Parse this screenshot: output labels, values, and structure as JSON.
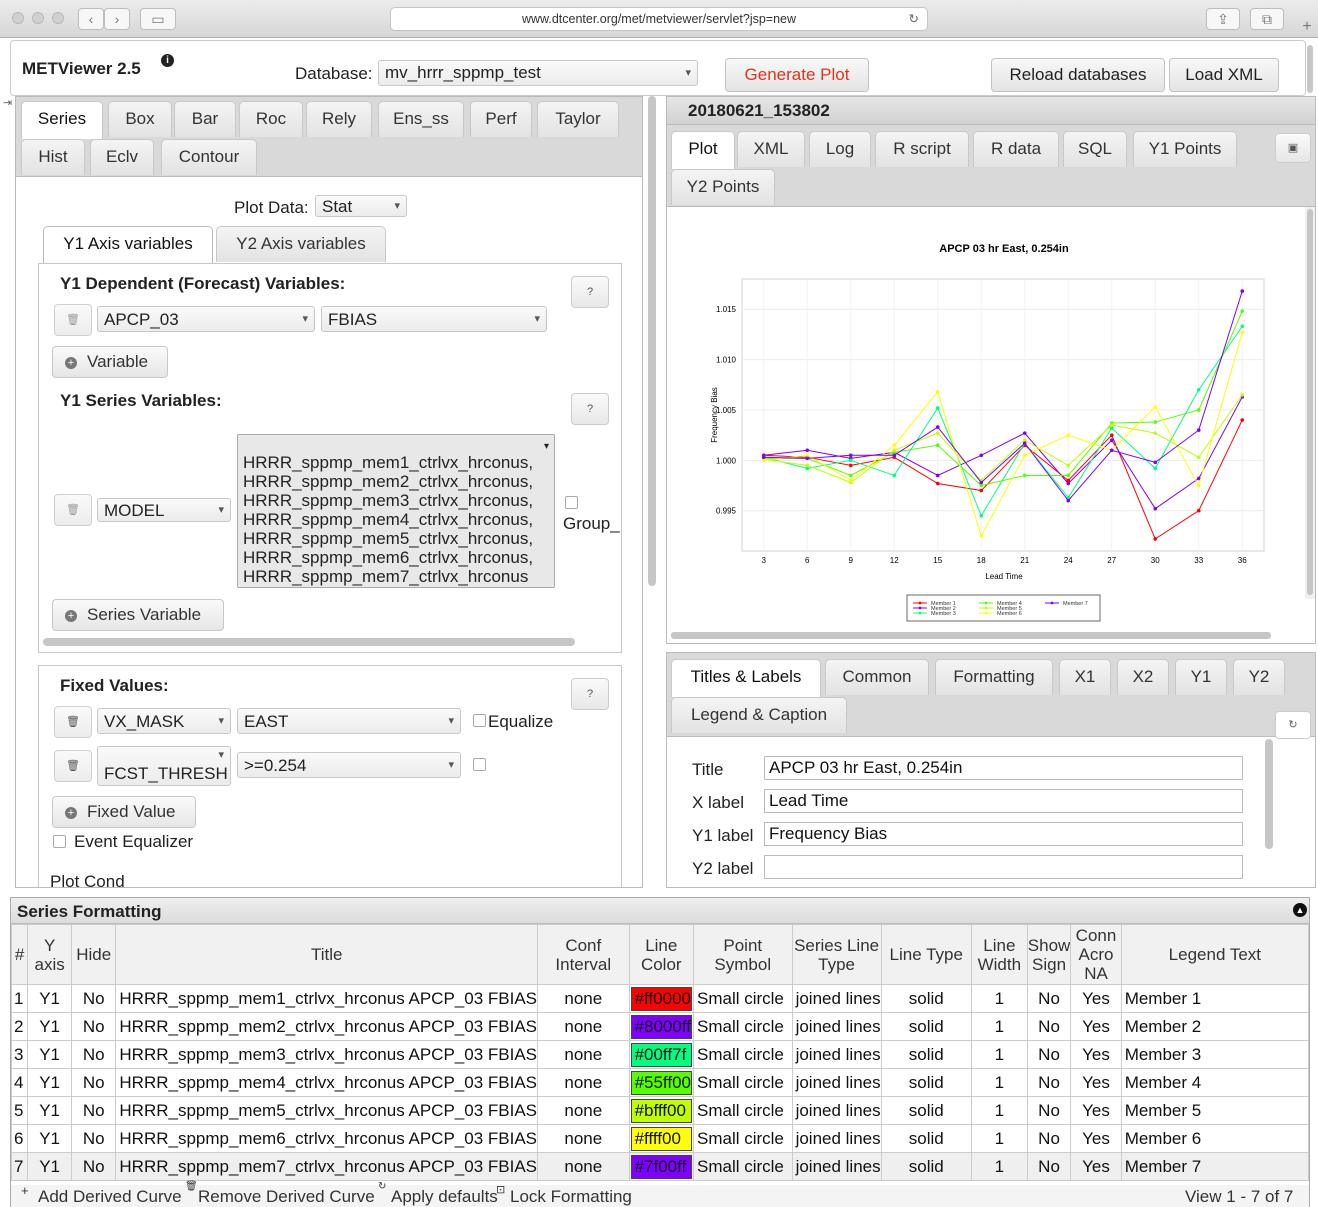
{
  "browser": {
    "url": "www.dtcenter.org/met/metviewer/servlet?jsp=new"
  },
  "header": {
    "app_title": "METViewer 2.5",
    "database_label": "Database:",
    "database_value": "mv_hrrr_sppmp_test",
    "generate_plot": "Generate Plot",
    "reload_databases": "Reload databases",
    "load_xml": "Load XML"
  },
  "left": {
    "plot_tabs": [
      "Series",
      "Box",
      "Bar",
      "Roc",
      "Rely",
      "Ens_ss",
      "Perf",
      "Taylor",
      "Hist",
      "Eclv",
      "Contour"
    ],
    "plot_data_label": "Plot Data:",
    "plot_data_value": "Stat",
    "axis_tabs": [
      "Y1 Axis variables",
      "Y2 Axis variables"
    ],
    "dep_title": "Y1 Dependent (Forecast) Variables:",
    "dep_var": "APCP_03",
    "dep_stat": "FBIAS",
    "variable_btn": "Variable",
    "series_title": "Y1 Series Variables:",
    "series_var": "MODEL",
    "series_values": [
      "HRRR_sppmp_mem1_ctrlvx_hrconus,",
      "HRRR_sppmp_mem2_ctrlvx_hrconus,",
      "HRRR_sppmp_mem3_ctrlvx_hrconus,",
      "HRRR_sppmp_mem4_ctrlvx_hrconus,",
      "HRRR_sppmp_mem5_ctrlvx_hrconus,",
      "HRRR_sppmp_mem6_ctrlvx_hrconus,",
      "HRRR_sppmp_mem7_ctrlvx_hrconus"
    ],
    "group_label": "Group_",
    "series_variable_btn": "Series Variable",
    "fixed_title": "Fixed Values:",
    "fixed1_var": "VX_MASK",
    "fixed1_val": "EAST",
    "equalize_label": "Equalize",
    "fixed2_var": "FCST_THRESH",
    "fixed2_val": ">=0.254",
    "fixed_value_btn": "Fixed Value",
    "event_equalizer": "Event Equalizer",
    "plot_cond": "Plot Cond",
    "help_glyph": "?"
  },
  "right": {
    "plot_id": "20180621_153802",
    "view_tabs": [
      "Plot",
      "XML",
      "Log",
      "R script",
      "R data",
      "SQL",
      "Y1 Points",
      "Y2 Points"
    ],
    "format_tabs": [
      "Titles & Labels",
      "Common",
      "Formatting",
      "X1",
      "X2",
      "Y1",
      "Y2",
      "Legend & Caption"
    ],
    "title_label": "Title",
    "title_value": "APCP 03 hr East, 0.254in",
    "xlabel_label": "X label",
    "xlabel_value": "Lead Time",
    "y1label_label": "Y1 label",
    "y1label_value": "Frequency Bias",
    "y2label_label": "Y2 label",
    "y2label_value": ""
  },
  "chart_data": {
    "type": "line",
    "title": "APCP 03 hr East, 0.254in",
    "xlabel": "Lead Time",
    "ylabel": "Frequency Bias",
    "x": [
      3,
      6,
      9,
      12,
      15,
      18,
      21,
      24,
      27,
      30,
      33,
      36
    ],
    "xticks": [
      3,
      6,
      9,
      12,
      15,
      18,
      21,
      24,
      27,
      30,
      33,
      36
    ],
    "yticks": [
      "0.995",
      "1.000",
      "1.005",
      "1.010",
      "1.015"
    ],
    "ylim": [
      0.991,
      1.018
    ],
    "xlim": [
      1.5,
      37.5
    ],
    "series": [
      {
        "name": "Member 1",
        "color": "#ff0000",
        "values": [
          1.0005,
          1.0003,
          0.9995,
          1.0003,
          0.9977,
          0.997,
          1.0015,
          0.998,
          1.0025,
          0.9922,
          0.995,
          1.004
        ]
      },
      {
        "name": "Member 2",
        "color": "#8000ff",
        "values": [
          1.0005,
          1.001,
          1.0002,
          1.0008,
          0.9985,
          1.0005,
          1.0027,
          0.9977,
          1.002,
          0.9952,
          0.9982,
          1.0063
        ]
      },
      {
        "name": "Member 3",
        "color": "#00ff7f",
        "values": [
          1.0003,
          0.9992,
          1.0,
          0.9985,
          1.0052,
          0.9945,
          1.0017,
          0.9963,
          1.0032,
          0.9992,
          1.007,
          1.0133
        ]
      },
      {
        "name": "Member 4",
        "color": "#55ff00",
        "values": [
          1.0002,
          1.0002,
          0.9985,
          1.0008,
          1.0015,
          0.9975,
          0.9985,
          0.9985,
          1.0037,
          1.0038,
          1.005,
          1.0148
        ]
      },
      {
        "name": "Member 5",
        "color": "#bfff00",
        "values": [
          1.0001,
          0.9995,
          0.9978,
          1.001,
          1.0027,
          0.998,
          1.002,
          0.9995,
          1.0035,
          1.0027,
          1.0003,
          1.0065
        ]
      },
      {
        "name": "Member 6",
        "color": "#ffff00",
        "values": [
          1.0,
          1.0005,
          0.998,
          1.0015,
          1.0068,
          0.9925,
          1.0005,
          1.0025,
          1.001,
          1.0053,
          0.9975,
          1.0127
        ]
      },
      {
        "name": "Member 7",
        "color": "#7f00ff",
        "values": [
          1.0003,
          1.0002,
          1.0005,
          1.0005,
          1.0033,
          0.9978,
          1.0017,
          0.996,
          1.001,
          0.9998,
          1.003,
          1.0168
        ]
      }
    ]
  },
  "series_formatting": {
    "title": "Series Formatting",
    "columns": [
      "#",
      "Y axis",
      "Hide",
      "Title",
      "Conf Interval",
      "Line Color",
      "Point Symbol",
      "Series Line Type",
      "Line Type",
      "Line Width",
      "Show Sign",
      "Conn Acro NA",
      "Legend Text"
    ],
    "rows": [
      {
        "n": "1",
        "y": "Y1",
        "hide": "No",
        "title": "HRRR_sppmp_mem1_ctrlvx_hrconus APCP_03 FBIAS",
        "ci": "none",
        "color_text": "#ff0000",
        "color": "#ff0000",
        "symbol": "Small circle",
        "slt": "joined lines",
        "lt": "solid",
        "lw": "1",
        "sign": "No",
        "conn": "Yes",
        "legend": "Member 1"
      },
      {
        "n": "2",
        "y": "Y1",
        "hide": "No",
        "title": "HRRR_sppmp_mem2_ctrlvx_hrconus APCP_03 FBIAS",
        "ci": "none",
        "color_text": "#8000ff",
        "color": "#8000ff",
        "symbol": "Small circle",
        "slt": "joined lines",
        "lt": "solid",
        "lw": "1",
        "sign": "No",
        "conn": "Yes",
        "legend": "Member 2"
      },
      {
        "n": "3",
        "y": "Y1",
        "hide": "No",
        "title": "HRRR_sppmp_mem3_ctrlvx_hrconus APCP_03 FBIAS",
        "ci": "none",
        "color_text": "#00ff7f",
        "color": "#00ff7f",
        "symbol": "Small circle",
        "slt": "joined lines",
        "lt": "solid",
        "lw": "1",
        "sign": "No",
        "conn": "Yes",
        "legend": "Member 3"
      },
      {
        "n": "4",
        "y": "Y1",
        "hide": "No",
        "title": "HRRR_sppmp_mem4_ctrlvx_hrconus APCP_03 FBIAS",
        "ci": "none",
        "color_text": "#55ff00",
        "color": "#55ff00",
        "symbol": "Small circle",
        "slt": "joined lines",
        "lt": "solid",
        "lw": "1",
        "sign": "No",
        "conn": "Yes",
        "legend": "Member 4"
      },
      {
        "n": "5",
        "y": "Y1",
        "hide": "No",
        "title": "HRRR_sppmp_mem5_ctrlvx_hrconus APCP_03 FBIAS",
        "ci": "none",
        "color_text": "#bfff00",
        "color": "#bfff00",
        "symbol": "Small circle",
        "slt": "joined lines",
        "lt": "solid",
        "lw": "1",
        "sign": "No",
        "conn": "Yes",
        "legend": "Member 5"
      },
      {
        "n": "6",
        "y": "Y1",
        "hide": "No",
        "title": "HRRR_sppmp_mem6_ctrlvx_hrconus APCP_03 FBIAS",
        "ci": "none",
        "color_text": "#ffff00",
        "color": "#ffff00",
        "symbol": "Small circle",
        "slt": "joined lines",
        "lt": "solid",
        "lw": "1",
        "sign": "No",
        "conn": "Yes",
        "legend": "Member 6"
      },
      {
        "n": "7",
        "y": "Y1",
        "hide": "No",
        "title": "HRRR_sppmp_mem7_ctrlvx_hrconus APCP_03 FBIAS",
        "ci": "none",
        "color_text": "#7f00ff",
        "color": "#7f00ff",
        "symbol": "Small circle",
        "slt": "joined lines",
        "lt": "solid",
        "lw": "1",
        "sign": "No",
        "conn": "Yes",
        "legend": "Member 7"
      }
    ],
    "footer": {
      "add_curve": "Add Derived Curve",
      "remove_curve": "Remove Derived Curve",
      "apply_defaults": "Apply defaults",
      "lock_formatting": "Lock Formatting",
      "view_count": "View 1 - 7 of 7"
    }
  }
}
